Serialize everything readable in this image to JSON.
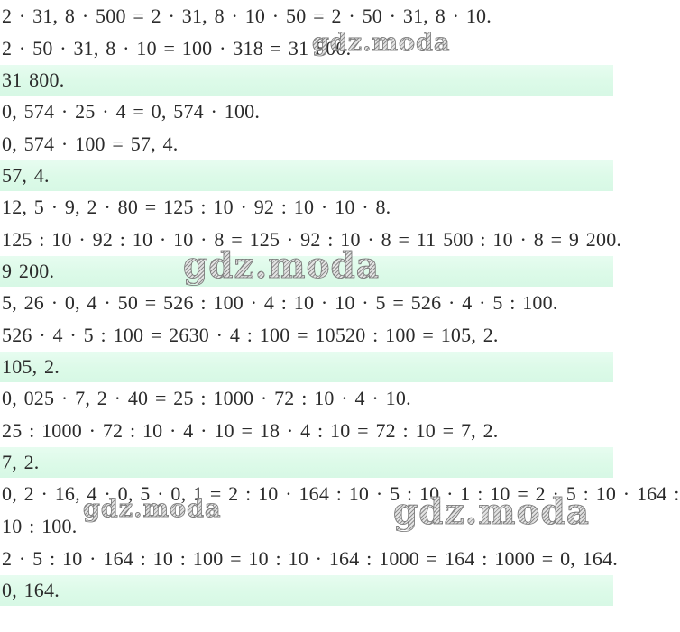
{
  "page": {
    "kind": "math-solution-sheet",
    "language": "ru",
    "colors": {
      "background": "#ffffff",
      "answer_highlight": "#dcfae8",
      "text": "#2b2b2b",
      "watermark": "#8d8d8d"
    }
  },
  "rows": [
    {
      "type": "math",
      "text": "2 · 31, 8 · 500 = 2 · 31, 8 · 10 · 50 = 2 · 50 · 31, 8 · 10."
    },
    {
      "type": "math",
      "text": "2 · 50 · 31, 8 · 10 = 100 · 318 = 31 800."
    },
    {
      "type": "answer",
      "text": "31 800."
    },
    {
      "type": "math",
      "text": "0, 574 · 25 · 4 = 0, 574 · 100."
    },
    {
      "type": "math",
      "text": "0, 574 · 100 = 57, 4."
    },
    {
      "type": "answer",
      "text": "57, 4."
    },
    {
      "type": "math",
      "text": "12, 5 · 9, 2 · 80 = 125 : 10 · 92 : 10 · 10 · 8."
    },
    {
      "type": "math",
      "text": "125 : 10 · 92 : 10 · 10 · 8 = 125 · 92 : 10 · 8 = 11 500 : 10 · 8 = 9 200."
    },
    {
      "type": "answer",
      "text": "9 200."
    },
    {
      "type": "math",
      "text": "5, 26 · 0, 4 · 50 = 526 : 100 · 4 : 10 · 10 · 5 = 526 · 4 · 5 : 100."
    },
    {
      "type": "math",
      "text": "526 · 4 · 5 : 100 = 2630 · 4 : 100 = 10520 : 100 = 105, 2."
    },
    {
      "type": "answer",
      "text": "105, 2."
    },
    {
      "type": "math",
      "text": "0, 025 · 7, 2 · 40 = 25 : 1000 · 72 : 10 · 4 · 10."
    },
    {
      "type": "math",
      "text": "25 : 1000 · 72 : 10 · 4 · 10 = 18 · 4 : 10 = 72 : 10 = 7, 2."
    },
    {
      "type": "answer",
      "text": "7, 2."
    },
    {
      "type": "math",
      "text": "0, 2 · 16, 4 · 0, 5 · 0, 1 = 2 : 10 · 164 : 10 · 5 : 10 · 1 : 10 = 2 · 5 : 10 · 164 :"
    },
    {
      "type": "math",
      "text": "10 : 100."
    },
    {
      "type": "math",
      "text": "2 · 5 : 10 · 164 : 10 : 100 = 10 : 10 · 164 : 1000 = 164 : 1000 = 0, 164."
    },
    {
      "type": "answer",
      "text": "0, 164."
    }
  ],
  "watermarks": [
    {
      "text": "gdz.moda",
      "size": "small"
    },
    {
      "text": "gdz.moda",
      "size": "large"
    },
    {
      "text": "gdz.moda",
      "size": "small"
    },
    {
      "text": "gdz.moda",
      "size": "large"
    }
  ]
}
